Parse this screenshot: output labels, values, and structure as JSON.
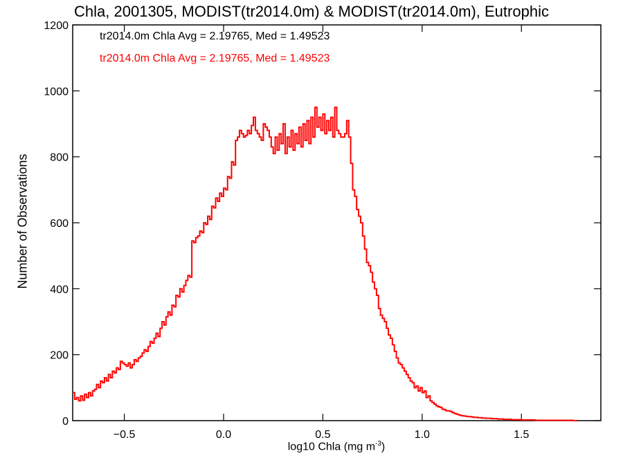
{
  "chart_data": {
    "type": "histogram",
    "title": "Chla, 2001305, MODIST(tr2014.0m) & MODIST(tr2014.0m), Eutrophic",
    "xlabel": "log10 Chla (mg m",
    "xlabel_sup": "-3",
    "xlabel_close": ")",
    "ylabel": "Number of Observations",
    "xlim": [
      -0.76,
      1.9
    ],
    "ylim": [
      0,
      1200
    ],
    "xticks": [
      -0.5,
      0.0,
      0.5,
      1.0,
      1.5
    ],
    "xtick_labels": [
      "−0.5",
      "0.0",
      "0.5",
      "1.0",
      "1.5"
    ],
    "yticks": [
      0,
      200,
      400,
      600,
      800,
      1000,
      1200
    ],
    "ytick_labels": [
      "0",
      "200",
      "400",
      "600",
      "800",
      "1000",
      "1200"
    ],
    "annotations": [
      {
        "text": "tr2014.0m Chla Avg = 2.19765, Med = 1.49523",
        "color": "#000000"
      },
      {
        "text": "tr2014.0m Chla Avg = 2.19765, Med = 1.49523",
        "color": "#ff0000"
      }
    ],
    "bin_width": 0.01,
    "x_start": -0.76,
    "series": [
      {
        "color": "#000000",
        "values": [],
        "shared_with_next": true
      },
      {
        "color": "#ff0000",
        "values": [
          85,
          65,
          70,
          60,
          75,
          62,
          80,
          70,
          85,
          75,
          90,
          95,
          110,
          100,
          120,
          115,
          130,
          120,
          140,
          130,
          150,
          145,
          160,
          155,
          180,
          175,
          170,
          165,
          175,
          160,
          170,
          185,
          180,
          190,
          195,
          205,
          215,
          210,
          225,
          240,
          235,
          250,
          265,
          255,
          280,
          300,
          290,
          315,
          330,
          320,
          350,
          345,
          380,
          375,
          400,
          390,
          410,
          425,
          440,
          435,
          545,
          540,
          555,
          560,
          575,
          570,
          600,
          595,
          620,
          610,
          650,
          645,
          675,
          665,
          690,
          680,
          705,
          700,
          740,
          735,
          785,
          775,
          850,
          860,
          880,
          870,
          860,
          865,
          880,
          870,
          895,
          920,
          880,
          870,
          860,
          850,
          900,
          890,
          880,
          860,
          830,
          810,
          860,
          820,
          870,
          840,
          900,
          810,
          860,
          830,
          880,
          820,
          870,
          840,
          890,
          830,
          900,
          850,
          910,
          840,
          920,
          860,
          950,
          890,
          920,
          880,
          930,
          870,
          910,
          880,
          920,
          860,
          950,
          880,
          870,
          860,
          860,
          870,
          910,
          860,
          780,
          700,
          680,
          640,
          620,
          600,
          560,
          520,
          480,
          470,
          450,
          420,
          400,
          380,
          340,
          320,
          310,
          300,
          280,
          260,
          250,
          230,
          210,
          190,
          175,
          170,
          160,
          150,
          140,
          130,
          120,
          115,
          100,
          105,
          90,
          100,
          85,
          90,
          70,
          75,
          60,
          55,
          50,
          45,
          42,
          40,
          35,
          33,
          30,
          30,
          28,
          25,
          22,
          20,
          18,
          16,
          15,
          14,
          13,
          12,
          12,
          11,
          10,
          10,
          9,
          9,
          8,
          8,
          7,
          7,
          7,
          6,
          6,
          6,
          5,
          5,
          5,
          4,
          4,
          4,
          4,
          3,
          3,
          3,
          3,
          3,
          2,
          2,
          2,
          2,
          2,
          2,
          2,
          1,
          1,
          1,
          1,
          1,
          1,
          1,
          1,
          1,
          1,
          1,
          1,
          1,
          1,
          1,
          1,
          1,
          1,
          1,
          0,
          0
        ]
      }
    ]
  }
}
